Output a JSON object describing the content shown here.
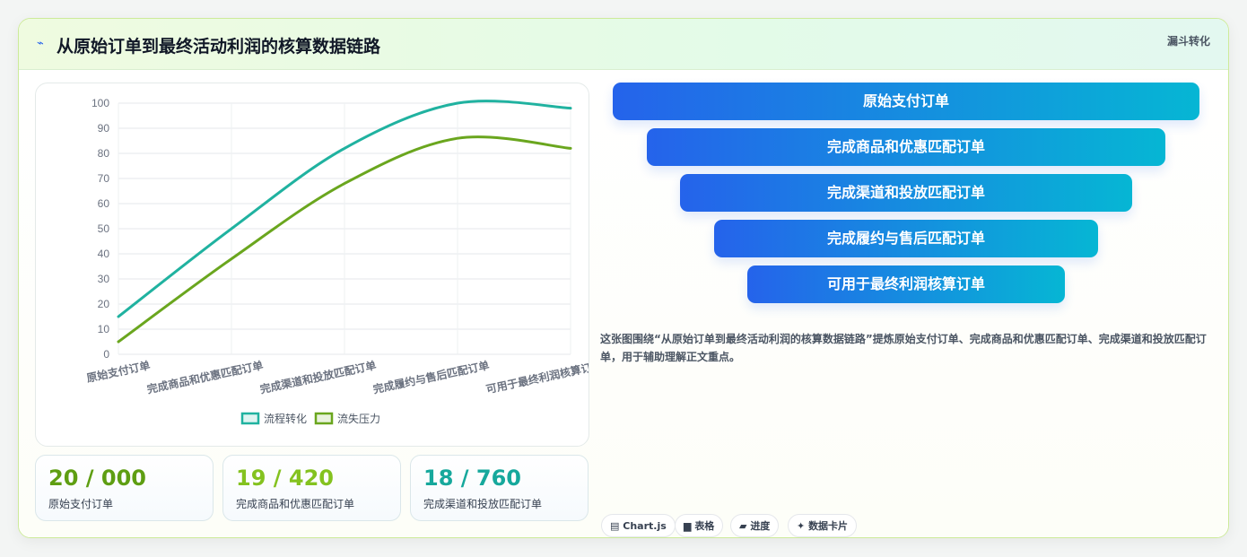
{
  "header": {
    "icon": "lightning-icon",
    "title": "从原始订单到最终活动利润的核算数据链路",
    "tag": "漏斗转化"
  },
  "chart_data": {
    "type": "line",
    "categories": [
      "原始支付订单",
      "完成商品和优惠匹配订单",
      "完成渠道和投放匹配订单",
      "完成履约与售后匹配订单",
      "可用于最终利润核算订单"
    ],
    "series": [
      {
        "name": "流程转化",
        "values": [
          15,
          50,
          82,
          100,
          98
        ],
        "color": "#20b2a0"
      },
      {
        "name": "流失压力",
        "values": [
          5,
          38,
          68,
          86,
          82
        ],
        "color": "#6aa61e"
      }
    ],
    "ylim": [
      0,
      100
    ],
    "yticks": [
      0,
      10,
      20,
      30,
      40,
      50,
      60,
      70,
      80,
      90,
      100
    ],
    "grid": true,
    "legend": "bottom"
  },
  "stats": [
    {
      "value": "20 / 000",
      "label": "原始支付订单",
      "color": "#5e9e12"
    },
    {
      "value": "19 / 420",
      "label": "完成商品和优惠匹配订单",
      "color": "#84c21f"
    },
    {
      "value": "18 / 760",
      "label": "完成渠道和投放匹配订单",
      "color": "#16a89c"
    }
  ],
  "funnel": [
    "原始支付订单",
    "完成商品和优惠匹配订单",
    "完成渠道和投放匹配订单",
    "完成履约与售后匹配订单",
    "可用于最终利润核算订单"
  ],
  "description": "这张图围绕“从原始订单到最终活动利润的核算数据链路”提炼原始支付订单、完成商品和优惠匹配订单、完成渠道和投放匹配订单，用于辅助理解正文重点。",
  "chips": [
    {
      "icon": "chart-icon",
      "label": "Chart.js"
    },
    {
      "icon": "table-icon",
      "label": "表格"
    },
    {
      "icon": "progress-icon",
      "label": "进度"
    },
    {
      "icon": "sparkle-icon",
      "label": "数据卡片"
    }
  ]
}
